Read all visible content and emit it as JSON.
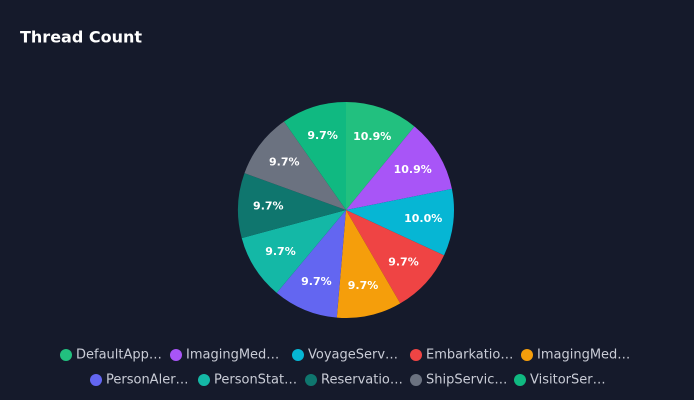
{
  "chart_data": {
    "type": "pie",
    "title": "Thread Count",
    "categories": [
      "DefaultApp…",
      "ImagingMed…",
      "VoyageServ…",
      "Embarkatio…",
      "ImagingMed…",
      "PersonAler…",
      "PersonStat…",
      "Reservatio…",
      "ShipServic…",
      "VisitorSer…"
    ],
    "values": [
      10.9,
      10.9,
      10.0,
      9.7,
      9.7,
      9.7,
      9.7,
      9.7,
      9.7,
      9.7
    ],
    "value_labels": [
      "10.9%",
      "10.9%",
      "10.0%",
      "9.7%",
      "9.7%",
      "9.7%",
      "9.7%",
      "9.7%",
      "9.7%",
      "9.7%"
    ],
    "colors": [
      "#22c07f",
      "#a855f7",
      "#06b6d4",
      "#ef4444",
      "#f59e0b",
      "#6366f1",
      "#14b8a6",
      "#0f766e",
      "#6b7280",
      "#10b981"
    ]
  }
}
